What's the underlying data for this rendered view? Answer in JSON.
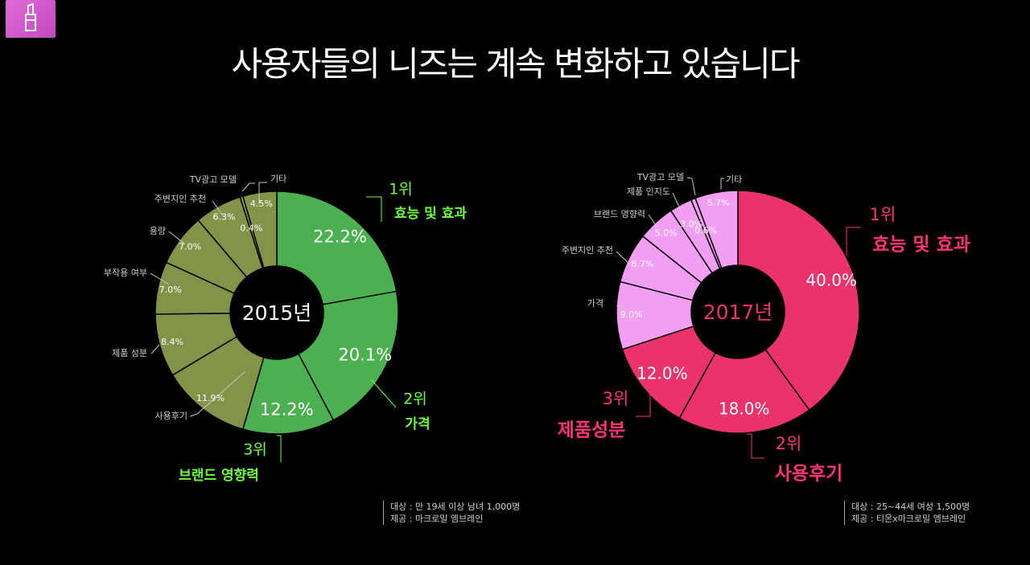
{
  "page": {
    "title": "사용자들의 니즈는 계속 변화하고 있습니다"
  },
  "colors": {
    "c2015_top": "#4caf50",
    "c2015_rest": "#839348",
    "c2017_top": "#ea336b",
    "c2017_rest": "#f29ef3",
    "hl2015": "#6dff3e",
    "hl2017": "#ff3377",
    "leader": "#c8c8c8"
  },
  "chart_data": [
    {
      "type": "donut",
      "center_label": "2015년",
      "slices": [
        {
          "label": "효능 및 효과",
          "value": 22.2,
          "value_text": "22.2%",
          "rank": "1위"
        },
        {
          "label": "가격",
          "value": 20.1,
          "value_text": "20.1%",
          "rank": "2위"
        },
        {
          "label": "브랜드 영향력",
          "value": 12.2,
          "value_text": "12.2%",
          "rank": "3위"
        },
        {
          "label": "사용후기",
          "value": 11.9,
          "value_text": "11.9%"
        },
        {
          "label": "제품 성분",
          "value": 8.4,
          "value_text": "8.4%"
        },
        {
          "label": "부작용 여부",
          "value": 7.0,
          "value_text": "7.0%"
        },
        {
          "label": "용량",
          "value": 7.0,
          "value_text": "7.0%"
        },
        {
          "label": "주변지인 추천",
          "value": 6.3,
          "value_text": "6.3%"
        },
        {
          "label": "TV광고 모델",
          "value": 0.4,
          "value_text": "0.4%"
        },
        {
          "label": "기타",
          "value": 4.5,
          "value_text": "4.5%"
        }
      ],
      "source_lines": [
        "대상 : 만 19세 이상 남녀 1,000명",
        "제공 : 마크로밀 엠브레인"
      ]
    },
    {
      "type": "donut",
      "center_label": "2017년",
      "slices": [
        {
          "label": "효능 및 효과",
          "value": 40.0,
          "value_text": "40.0%",
          "rank": "1위"
        },
        {
          "label": "사용후기",
          "value": 18.0,
          "value_text": "18.0%",
          "rank": "2위"
        },
        {
          "label": "제품성분",
          "value": 12.0,
          "value_text": "12.0%",
          "rank": "3위"
        },
        {
          "label": "가격",
          "value": 9.0,
          "value_text": "9.0%"
        },
        {
          "label": "주변지인 추천",
          "value": 6.7,
          "value_text": "6.7%"
        },
        {
          "label": "브랜드 영향력",
          "value": 5.0,
          "value_text": "5.0%"
        },
        {
          "label": "제품 인지도",
          "value": 3.0,
          "value_text": "3.0%"
        },
        {
          "label": "TV광고 모델",
          "value": 0.6,
          "value_text": "0.6%"
        },
        {
          "label": "기타",
          "value": 5.7,
          "value_text": "5.7%"
        }
      ],
      "source_lines": [
        "대상 : 25~44세 여성 1,500명",
        "제공 : 티몬x마크로밀 엠브레인"
      ]
    }
  ]
}
